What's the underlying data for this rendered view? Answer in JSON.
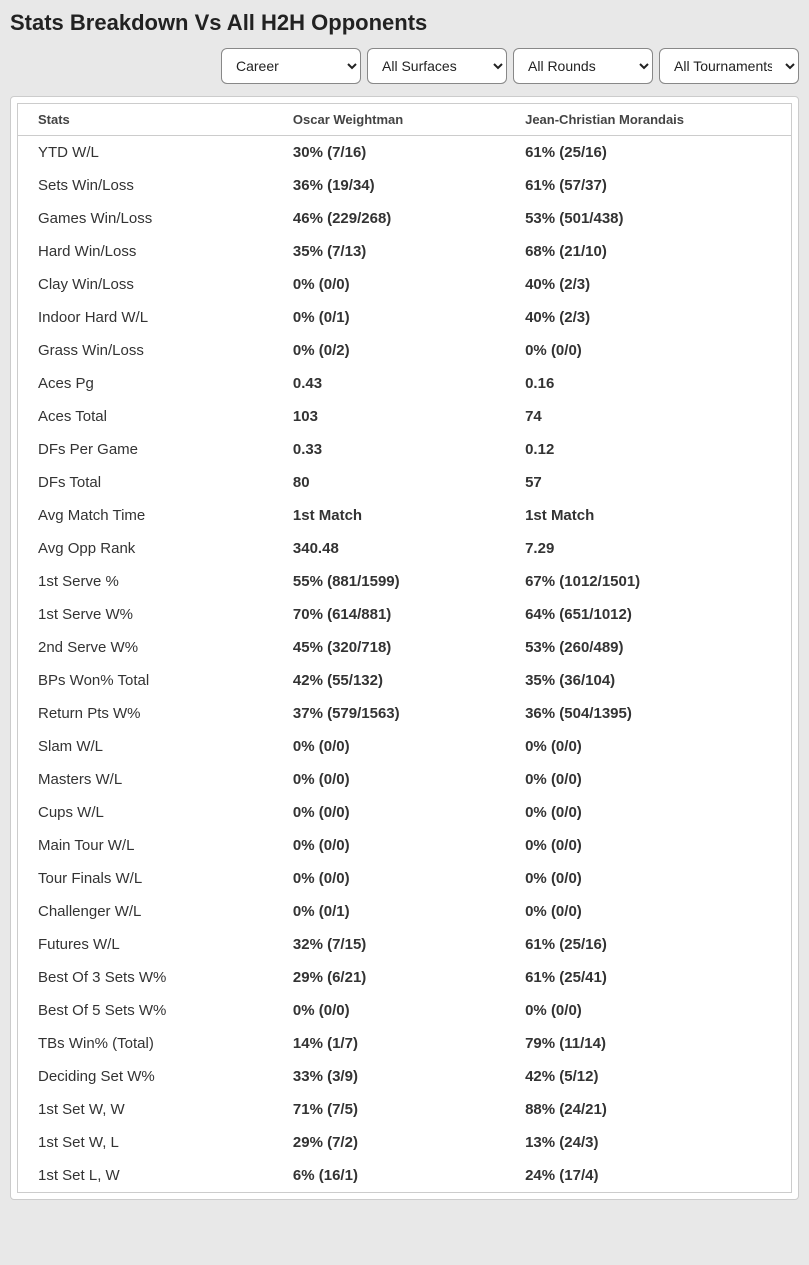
{
  "title": "Stats Breakdown Vs All H2H Opponents",
  "filters": {
    "career": {
      "selected": "Career",
      "options": [
        "Career"
      ]
    },
    "surfaces": {
      "selected": "All Surfaces",
      "options": [
        "All Surfaces"
      ]
    },
    "rounds": {
      "selected": "All Rounds",
      "options": [
        "All Rounds"
      ]
    },
    "tournaments": {
      "selected": "All Tournaments",
      "options": [
        "All Tournaments"
      ]
    }
  },
  "table": {
    "columns": [
      "Stats",
      "Oscar Weightman",
      "Jean-Christian Morandais"
    ],
    "rows": [
      [
        "YTD W/L",
        "30% (7/16)",
        "61% (25/16)"
      ],
      [
        "Sets Win/Loss",
        "36% (19/34)",
        "61% (57/37)"
      ],
      [
        "Games Win/Loss",
        "46% (229/268)",
        "53% (501/438)"
      ],
      [
        "Hard Win/Loss",
        "35% (7/13)",
        "68% (21/10)"
      ],
      [
        "Clay Win/Loss",
        "0% (0/0)",
        "40% (2/3)"
      ],
      [
        "Indoor Hard W/L",
        "0% (0/1)",
        "40% (2/3)"
      ],
      [
        "Grass Win/Loss",
        "0% (0/2)",
        "0% (0/0)"
      ],
      [
        "Aces Pg",
        "0.43",
        "0.16"
      ],
      [
        "Aces Total",
        "103",
        "74"
      ],
      [
        "DFs Per Game",
        "0.33",
        "0.12"
      ],
      [
        "DFs Total",
        "80",
        "57"
      ],
      [
        "Avg Match Time",
        "1st Match",
        "1st Match"
      ],
      [
        "Avg Opp Rank",
        "340.48",
        "7.29"
      ],
      [
        "1st Serve %",
        "55% (881/1599)",
        "67% (1012/1501)"
      ],
      [
        "1st Serve W%",
        "70% (614/881)",
        "64% (651/1012)"
      ],
      [
        "2nd Serve W%",
        "45% (320/718)",
        "53% (260/489)"
      ],
      [
        "BPs Won% Total",
        "42% (55/132)",
        "35% (36/104)"
      ],
      [
        "Return Pts W%",
        "37% (579/1563)",
        "36% (504/1395)"
      ],
      [
        "Slam W/L",
        "0% (0/0)",
        "0% (0/0)"
      ],
      [
        "Masters W/L",
        "0% (0/0)",
        "0% (0/0)"
      ],
      [
        "Cups W/L",
        "0% (0/0)",
        "0% (0/0)"
      ],
      [
        "Main Tour W/L",
        "0% (0/0)",
        "0% (0/0)"
      ],
      [
        "Tour Finals W/L",
        "0% (0/0)",
        "0% (0/0)"
      ],
      [
        "Challenger W/L",
        "0% (0/1)",
        "0% (0/0)"
      ],
      [
        "Futures W/L",
        "32% (7/15)",
        "61% (25/16)"
      ],
      [
        "Best Of 3 Sets W%",
        "29% (6/21)",
        "61% (25/41)"
      ],
      [
        "Best Of 5 Sets W%",
        "0% (0/0)",
        "0% (0/0)"
      ],
      [
        "TBs Win% (Total)",
        "14% (1/7)",
        "79% (11/14)"
      ],
      [
        "Deciding Set W%",
        "33% (3/9)",
        "42% (5/12)"
      ],
      [
        "1st Set W, W",
        "71% (7/5)",
        "88% (24/21)"
      ],
      [
        "1st Set W, L",
        "29% (7/2)",
        "13% (24/3)"
      ],
      [
        "1st Set L, W",
        "6% (16/1)",
        "24% (17/4)"
      ]
    ]
  },
  "colors": {
    "page_bg": "#e8e8e8",
    "card_bg": "#ffffff",
    "border": "#cccccc",
    "text": "#333333",
    "header_text": "#444444"
  }
}
